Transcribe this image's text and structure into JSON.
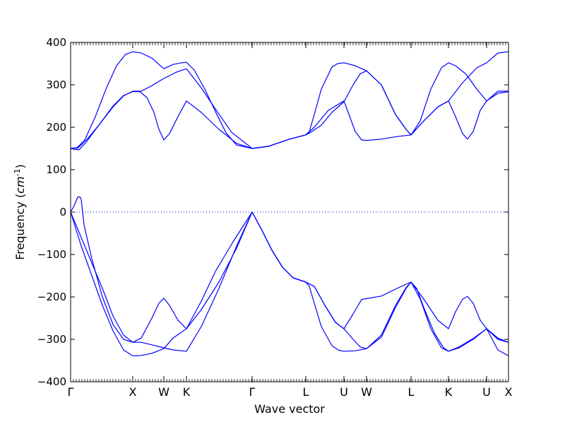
{
  "chart_data": {
    "type": "line",
    "title": "",
    "xlabel": "Wave vector",
    "ylabel": "Frequency ($cm^{-1}$)",
    "ylim": [
      -400,
      400
    ],
    "yticks": [
      -400,
      -300,
      -200,
      -100,
      0,
      100,
      200,
      300,
      400
    ],
    "ytick_labels": [
      "−400",
      "−300",
      "−200",
      "−100",
      "0",
      "100",
      "200",
      "300",
      "400"
    ],
    "xlim": [
      0,
      620
    ],
    "x_ticks": [
      {
        "label": "Γ",
        "x": 0
      },
      {
        "label": "X",
        "x": 88
      },
      {
        "label": "W",
        "x": 132
      },
      {
        "label": "K",
        "x": 164
      },
      {
        "label": "Γ",
        "x": 257
      },
      {
        "label": "L",
        "x": 333
      },
      {
        "label": "U",
        "x": 387
      },
      {
        "label": "W",
        "x": 419
      },
      {
        "label": "L",
        "x": 482
      },
      {
        "label": "K",
        "x": 535
      },
      {
        "label": "U",
        "x": 589
      },
      {
        "label": "X",
        "x": 620
      }
    ],
    "zero_line": {
      "y": 0,
      "style": "dotted"
    },
    "line_color": "#0000ff",
    "series": [
      {
        "values": [
          [
            0,
            150
          ],
          [
            5,
            148
          ],
          [
            12,
            147
          ],
          [
            22,
            165
          ],
          [
            40,
            205
          ],
          [
            60,
            250
          ],
          [
            75,
            275
          ],
          [
            88,
            284
          ],
          [
            98,
            284
          ],
          [
            108,
            270
          ],
          [
            118,
            235
          ],
          [
            125,
            195
          ],
          [
            132,
            170
          ],
          [
            140,
            185
          ],
          [
            152,
            225
          ],
          [
            164,
            262
          ],
          [
            185,
            235
          ],
          [
            210,
            195
          ],
          [
            235,
            162
          ],
          [
            257,
            150
          ],
          [
            280,
            155
          ],
          [
            310,
            172
          ],
          [
            333,
            182
          ],
          [
            345,
            200
          ],
          [
            365,
            240
          ],
          [
            387,
            262
          ],
          [
            403,
            190
          ],
          [
            412,
            170
          ],
          [
            419,
            169
          ],
          [
            440,
            172
          ],
          [
            462,
            178
          ],
          [
            482,
            182
          ],
          [
            500,
            215
          ],
          [
            520,
            248
          ],
          [
            535,
            262
          ],
          [
            545,
            225
          ],
          [
            555,
            185
          ],
          [
            562,
            172
          ],
          [
            570,
            190
          ],
          [
            580,
            240
          ],
          [
            589,
            262
          ],
          [
            605,
            280
          ],
          [
            620,
            284
          ]
        ]
      },
      {
        "values": [
          [
            0,
            150
          ],
          [
            8,
            148
          ],
          [
            16,
            160
          ],
          [
            25,
            175
          ],
          [
            40,
            205
          ],
          [
            60,
            248
          ],
          [
            75,
            274
          ],
          [
            88,
            285
          ],
          [
            100,
            285
          ],
          [
            115,
            298
          ],
          [
            132,
            315
          ],
          [
            150,
            330
          ],
          [
            164,
            338
          ],
          [
            185,
            293
          ],
          [
            205,
            243
          ],
          [
            228,
            188
          ],
          [
            257,
            150
          ],
          [
            280,
            155
          ],
          [
            310,
            172
          ],
          [
            333,
            182
          ],
          [
            340,
            188
          ],
          [
            355,
            205
          ],
          [
            370,
            235
          ],
          [
            387,
            260
          ],
          [
            400,
            300
          ],
          [
            410,
            326
          ],
          [
            419,
            333
          ],
          [
            440,
            300
          ],
          [
            460,
            230
          ],
          [
            475,
            195
          ],
          [
            482,
            182
          ],
          [
            500,
            215
          ],
          [
            520,
            248
          ],
          [
            535,
            262
          ],
          [
            555,
            305
          ],
          [
            575,
            340
          ],
          [
            589,
            352
          ],
          [
            605,
            375
          ],
          [
            620,
            378
          ]
        ]
      },
      {
        "values": [
          [
            0,
            150
          ],
          [
            10,
            153
          ],
          [
            20,
            170
          ],
          [
            35,
            225
          ],
          [
            50,
            290
          ],
          [
            65,
            345
          ],
          [
            78,
            372
          ],
          [
            88,
            378
          ],
          [
            100,
            375
          ],
          [
            115,
            363
          ],
          [
            132,
            338
          ],
          [
            145,
            348
          ],
          [
            157,
            352
          ],
          [
            164,
            353
          ],
          [
            175,
            335
          ],
          [
            190,
            290
          ],
          [
            205,
            237
          ],
          [
            220,
            187
          ],
          [
            235,
            158
          ],
          [
            257,
            150
          ],
          [
            280,
            155
          ],
          [
            310,
            172
          ],
          [
            333,
            182
          ],
          [
            338,
            190
          ],
          [
            345,
            230
          ],
          [
            355,
            290
          ],
          [
            370,
            342
          ],
          [
            378,
            350
          ],
          [
            387,
            352
          ],
          [
            403,
            345
          ],
          [
            419,
            333
          ],
          [
            440,
            300
          ],
          [
            460,
            230
          ],
          [
            475,
            195
          ],
          [
            482,
            182
          ],
          [
            495,
            215
          ],
          [
            510,
            290
          ],
          [
            525,
            340
          ],
          [
            535,
            352
          ],
          [
            545,
            345
          ],
          [
            560,
            325
          ],
          [
            575,
            290
          ],
          [
            589,
            262
          ],
          [
            605,
            285
          ],
          [
            620,
            285
          ]
        ]
      },
      {
        "values": [
          [
            0,
            0
          ],
          [
            5,
            15
          ],
          [
            10,
            35
          ],
          [
            13,
            36
          ],
          [
            15,
            30
          ],
          [
            17,
            0
          ],
          [
            19,
            -30
          ],
          [
            30,
            -110
          ],
          [
            45,
            -200
          ],
          [
            60,
            -265
          ],
          [
            75,
            -300
          ],
          [
            88,
            -307
          ],
          [
            100,
            -307
          ],
          [
            115,
            -313
          ],
          [
            132,
            -320
          ],
          [
            145,
            -325
          ],
          [
            164,
            -328
          ],
          [
            185,
            -270
          ],
          [
            210,
            -180
          ],
          [
            235,
            -80
          ],
          [
            257,
            0
          ],
          [
            270,
            -40
          ],
          [
            285,
            -90
          ],
          [
            300,
            -130
          ],
          [
            315,
            -155
          ],
          [
            333,
            -165
          ],
          [
            345,
            -175
          ],
          [
            360,
            -220
          ],
          [
            375,
            -260
          ],
          [
            387,
            -275
          ],
          [
            400,
            -240
          ],
          [
            412,
            -206
          ],
          [
            419,
            -204
          ],
          [
            440,
            -198
          ],
          [
            462,
            -180
          ],
          [
            482,
            -165
          ],
          [
            490,
            -180
          ],
          [
            500,
            -225
          ],
          [
            515,
            -285
          ],
          [
            528,
            -320
          ],
          [
            535,
            -328
          ],
          [
            550,
            -320
          ],
          [
            570,
            -300
          ],
          [
            589,
            -275
          ],
          [
            605,
            -297
          ],
          [
            620,
            -307
          ]
        ]
      },
      {
        "values": [
          [
            0,
            0
          ],
          [
            15,
            -60
          ],
          [
            30,
            -120
          ],
          [
            45,
            -180
          ],
          [
            60,
            -245
          ],
          [
            75,
            -290
          ],
          [
            88,
            -307
          ],
          [
            100,
            -297
          ],
          [
            115,
            -250
          ],
          [
            125,
            -215
          ],
          [
            132,
            -203
          ],
          [
            140,
            -220
          ],
          [
            152,
            -255
          ],
          [
            164,
            -275
          ],
          [
            185,
            -230
          ],
          [
            210,
            -165
          ],
          [
            235,
            -85
          ],
          [
            257,
            0
          ],
          [
            270,
            -40
          ],
          [
            285,
            -90
          ],
          [
            300,
            -130
          ],
          [
            315,
            -155
          ],
          [
            333,
            -165
          ],
          [
            345,
            -175
          ],
          [
            360,
            -220
          ],
          [
            375,
            -260
          ],
          [
            387,
            -275
          ],
          [
            400,
            -300
          ],
          [
            410,
            -318
          ],
          [
            419,
            -322
          ],
          [
            440,
            -295
          ],
          [
            460,
            -225
          ],
          [
            475,
            -180
          ],
          [
            482,
            -165
          ],
          [
            500,
            -205
          ],
          [
            520,
            -255
          ],
          [
            535,
            -275
          ],
          [
            545,
            -235
          ],
          [
            555,
            -205
          ],
          [
            562,
            -199
          ],
          [
            570,
            -215
          ],
          [
            580,
            -255
          ],
          [
            589,
            -275
          ],
          [
            605,
            -300
          ],
          [
            620,
            -307
          ]
        ]
      },
      {
        "values": [
          [
            0,
            0
          ],
          [
            15,
            -80
          ],
          [
            30,
            -150
          ],
          [
            45,
            -220
          ],
          [
            60,
            -280
          ],
          [
            75,
            -325
          ],
          [
            88,
            -339
          ],
          [
            100,
            -338
          ],
          [
            115,
            -333
          ],
          [
            132,
            -322
          ],
          [
            145,
            -297
          ],
          [
            164,
            -275
          ],
          [
            185,
            -210
          ],
          [
            205,
            -140
          ],
          [
            230,
            -70
          ],
          [
            257,
            0
          ],
          [
            270,
            -40
          ],
          [
            285,
            -90
          ],
          [
            300,
            -130
          ],
          [
            315,
            -155
          ],
          [
            333,
            -165
          ],
          [
            338,
            -175
          ],
          [
            345,
            -215
          ],
          [
            355,
            -270
          ],
          [
            370,
            -315
          ],
          [
            380,
            -326
          ],
          [
            387,
            -328
          ],
          [
            403,
            -327
          ],
          [
            419,
            -322
          ],
          [
            440,
            -290
          ],
          [
            460,
            -220
          ],
          [
            475,
            -178
          ],
          [
            482,
            -165
          ],
          [
            495,
            -205
          ],
          [
            510,
            -275
          ],
          [
            525,
            -320
          ],
          [
            535,
            -328
          ],
          [
            550,
            -318
          ],
          [
            570,
            -298
          ],
          [
            589,
            -275
          ],
          [
            605,
            -325
          ],
          [
            620,
            -339
          ]
        ]
      }
    ]
  }
}
